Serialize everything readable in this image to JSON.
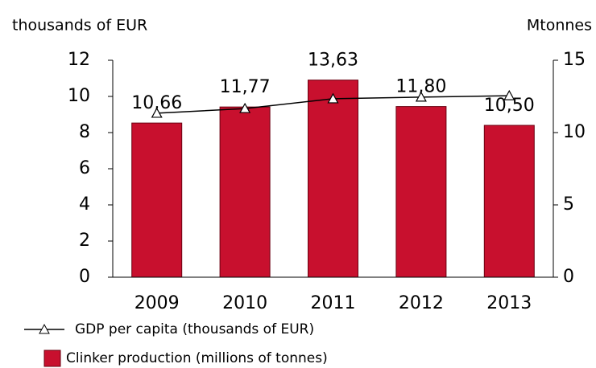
{
  "chart_data": {
    "type": "bar",
    "y_axis_label": "thousands of EUR",
    "y2_axis_label": "Mtonnes",
    "categories": [
      "2009",
      "2010",
      "2011",
      "2012",
      "2013"
    ],
    "series": [
      {
        "name": "GDP per capita (thousands of EUR)",
        "type": "line",
        "color": "#000000",
        "axis": "y",
        "values": [
          9.07,
          9.33,
          9.87,
          9.96,
          10.04
        ]
      },
      {
        "name": "Clinker production (millions of tonnes)",
        "type": "bar",
        "color": "#c8102e",
        "axis": "y2",
        "values": [
          10.66,
          11.77,
          13.63,
          11.8,
          10.5
        ],
        "value_labels": [
          "10,66",
          "11,77",
          "13,63",
          "11,80",
          "10,50"
        ]
      }
    ],
    "ylim": [
      0,
      12
    ],
    "yticks": [
      0,
      2,
      4,
      6,
      8,
      10,
      12
    ],
    "y2lim": [
      0,
      15
    ],
    "y2ticks": [
      0,
      5,
      10,
      15
    ]
  }
}
